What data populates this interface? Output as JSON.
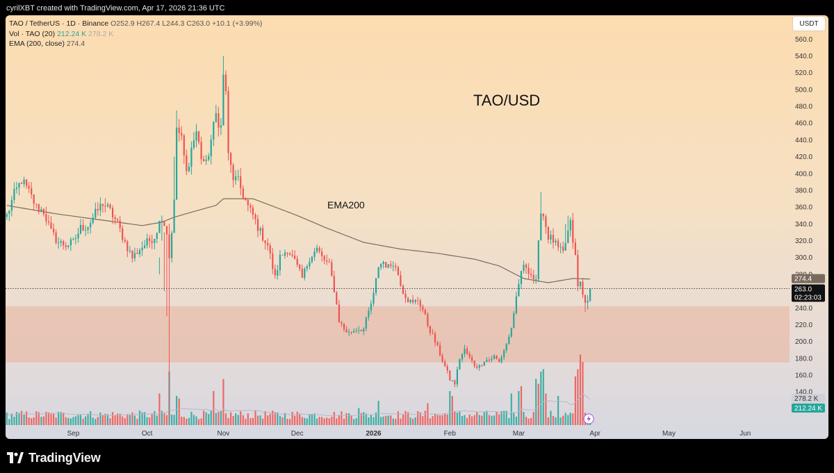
{
  "header": {
    "credit": "cyrilXBT created with TradingView.com, Apr 17, 2026 21:36 UTC",
    "currency": "USDT"
  },
  "legend": {
    "symbol_line": "TAO / TetherUS · 1D · Binance",
    "ohlc": "O252.9  H267.4  L244.3  C263.0  +10.1 (+3.99%)",
    "vol_label": "Vol · TAO (20)",
    "vol_value": "212.24 K",
    "vol_ma": "278.2 K",
    "ema_label": "EMA (200, close)",
    "ema_value": "274.4"
  },
  "annotations": {
    "title": "TAO/USD",
    "ema": "EMA200"
  },
  "footer": {
    "brand": "TradingView"
  },
  "colors": {
    "up": "#26a69a",
    "down": "#ef5350",
    "ema_line": "#7a6a5e",
    "zone": "#e7b29a",
    "bg_top": "#fcdcb0",
    "bg_bottom": "#d6d8e2"
  },
  "chart_data": {
    "type": "candlestick",
    "symbol": "TAO / TetherUS",
    "interval": "1D",
    "exchange": "Binance",
    "ylim": [
      120,
      575
    ],
    "yticks": [
      140,
      160,
      180,
      200,
      220,
      240,
      260,
      280,
      300,
      320,
      340,
      360,
      380,
      400,
      420,
      440,
      460,
      480,
      500,
      520,
      540,
      560
    ],
    "x_ticks": [
      {
        "label": "Sep",
        "idx": 27
      },
      {
        "label": "Oct",
        "idx": 57
      },
      {
        "label": "Nov",
        "idx": 88
      },
      {
        "label": "Dec",
        "idx": 118
      },
      {
        "label": "2026",
        "idx": 149
      },
      {
        "label": "Feb",
        "idx": 180
      },
      {
        "label": "Mar",
        "idx": 208
      },
      {
        "label": "Apr",
        "idx": 239
      },
      {
        "label": "May",
        "idx": 269
      },
      {
        "label": "Jun",
        "idx": 300
      }
    ],
    "x_range": [
      -0.5,
      318
    ],
    "last_close": 263.0,
    "ema_last": 274.4,
    "countdown": "02:23:03",
    "vol_ma_label": "278.2 K",
    "vol_last_label": "212.24 K",
    "demand_zone": {
      "low": 175,
      "high": 242
    },
    "close_anchors": [
      [
        0,
        350
      ],
      [
        3,
        375
      ],
      [
        6,
        392
      ],
      [
        9,
        378
      ],
      [
        12,
        360
      ],
      [
        15,
        355
      ],
      [
        18,
        330
      ],
      [
        21,
        318
      ],
      [
        24,
        315
      ],
      [
        27,
        318
      ],
      [
        30,
        335
      ],
      [
        33,
        338
      ],
      [
        36,
        352
      ],
      [
        39,
        365
      ],
      [
        42,
        355
      ],
      [
        45,
        340
      ],
      [
        48,
        318
      ],
      [
        51,
        300
      ],
      [
        54,
        310
      ],
      [
        57,
        318
      ],
      [
        60,
        325
      ],
      [
        63,
        350
      ],
      [
        65,
        330
      ],
      [
        66,
        300
      ],
      [
        68,
        365
      ],
      [
        69,
        455
      ],
      [
        71,
        440
      ],
      [
        73,
        400
      ],
      [
        75,
        430
      ],
      [
        77,
        450
      ],
      [
        79,
        420
      ],
      [
        81,
        410
      ],
      [
        83,
        440
      ],
      [
        85,
        470
      ],
      [
        87,
        455
      ],
      [
        88,
        515
      ],
      [
        89,
        500
      ],
      [
        90,
        420
      ],
      [
        92,
        395
      ],
      [
        94,
        390
      ],
      [
        96,
        375
      ],
      [
        98,
        360
      ],
      [
        100,
        350
      ],
      [
        103,
        330
      ],
      [
        106,
        315
      ],
      [
        109,
        275
      ],
      [
        111,
        300
      ],
      [
        114,
        310
      ],
      [
        117,
        295
      ],
      [
        120,
        275
      ],
      [
        123,
        300
      ],
      [
        126,
        310
      ],
      [
        128,
        300
      ],
      [
        131,
        290
      ],
      [
        133,
        262
      ],
      [
        135,
        225
      ],
      [
        137,
        215
      ],
      [
        139,
        210
      ],
      [
        142,
        215
      ],
      [
        145,
        215
      ],
      [
        147,
        235
      ],
      [
        149,
        255
      ],
      [
        151,
        290
      ],
      [
        153,
        295
      ],
      [
        155,
        288
      ],
      [
        157,
        295
      ],
      [
        159,
        280
      ],
      [
        161,
        260
      ],
      [
        163,
        250
      ],
      [
        165,
        245
      ],
      [
        167,
        250
      ],
      [
        169,
        238
      ],
      [
        171,
        220
      ],
      [
        174,
        200
      ],
      [
        176,
        185
      ],
      [
        178,
        170
      ],
      [
        180,
        155
      ],
      [
        182,
        150
      ],
      [
        184,
        180
      ],
      [
        186,
        190
      ],
      [
        188,
        180
      ],
      [
        190,
        172
      ],
      [
        192,
        170
      ],
      [
        194,
        178
      ],
      [
        196,
        178
      ],
      [
        198,
        182
      ],
      [
        200,
        175
      ],
      [
        202,
        190
      ],
      [
        204,
        205
      ],
      [
        206,
        230
      ],
      [
        207,
        250
      ],
      [
        209,
        285
      ],
      [
        211,
        290
      ],
      [
        213,
        280
      ],
      [
        215,
        270
      ],
      [
        216,
        315
      ],
      [
        217,
        358
      ],
      [
        218,
        350
      ],
      [
        220,
        325
      ],
      [
        222,
        320
      ],
      [
        224,
        310
      ],
      [
        226,
        305
      ],
      [
        228,
        330
      ],
      [
        229,
        340
      ],
      [
        230,
        320
      ],
      [
        231,
        300
      ],
      [
        232,
        265
      ],
      [
        233,
        270
      ],
      [
        234,
        255
      ],
      [
        235,
        250
      ],
      [
        236,
        245
      ],
      [
        237,
        263
      ]
    ],
    "ema_anchors": [
      [
        0,
        362
      ],
      [
        20,
        352
      ],
      [
        40,
        344
      ],
      [
        55,
        338
      ],
      [
        63,
        342
      ],
      [
        68,
        348
      ],
      [
        80,
        358
      ],
      [
        85,
        362
      ],
      [
        88,
        370
      ],
      [
        100,
        370
      ],
      [
        118,
        350
      ],
      [
        130,
        335
      ],
      [
        145,
        318
      ],
      [
        160,
        310
      ],
      [
        175,
        305
      ],
      [
        190,
        298
      ],
      [
        200,
        290
      ],
      [
        210,
        275
      ],
      [
        220,
        270
      ],
      [
        230,
        275
      ],
      [
        237,
        274.4
      ]
    ],
    "spikes": [
      {
        "idx": 62,
        "low": 280,
        "high": 300
      },
      {
        "idx": 63,
        "low": 320,
        "high": 350
      },
      {
        "idx": 64,
        "low": 260,
        "high": 330
      },
      {
        "idx": 65,
        "low": 230,
        "high": 330
      },
      {
        "idx": 66,
        "low": 45,
        "high": 340
      },
      {
        "idx": 68,
        "low": 350,
        "high": 420
      },
      {
        "idx": 69,
        "low": 420,
        "high": 475
      },
      {
        "idx": 88,
        "low": 460,
        "high": 540
      },
      {
        "idx": 217,
        "low": 330,
        "high": 378
      },
      {
        "idx": 227,
        "low": 310,
        "high": 340
      },
      {
        "idx": 228,
        "low": 320,
        "high": 350
      },
      {
        "idx": 229,
        "low": 325,
        "high": 348
      },
      {
        "idx": 235,
        "low": 235,
        "high": 250
      },
      {
        "idx": 236,
        "low": 238,
        "high": 255
      }
    ],
    "volume_spikes": [
      {
        "idx": 62,
        "v": 0.65,
        "dir": "down"
      },
      {
        "idx": 66,
        "v": 1.1,
        "dir": "up"
      },
      {
        "idx": 69,
        "v": 0.6,
        "dir": "up"
      },
      {
        "idx": 70,
        "v": 0.55,
        "dir": "down"
      },
      {
        "idx": 84,
        "v": 0.7,
        "dir": "down"
      },
      {
        "idx": 88,
        "v": 0.95,
        "dir": "down"
      },
      {
        "idx": 143,
        "v": 0.35,
        "dir": "up"
      },
      {
        "idx": 151,
        "v": 0.5,
        "dir": "up"
      },
      {
        "idx": 171,
        "v": 0.45,
        "dir": "down"
      },
      {
        "idx": 180,
        "v": 0.7,
        "dir": "up"
      },
      {
        "idx": 181,
        "v": 0.6,
        "dir": "down"
      },
      {
        "idx": 205,
        "v": 0.65,
        "dir": "up"
      },
      {
        "idx": 208,
        "v": 0.7,
        "dir": "up"
      },
      {
        "idx": 209,
        "v": 0.8,
        "dir": "down"
      },
      {
        "idx": 215,
        "v": 0.95,
        "dir": "up"
      },
      {
        "idx": 216,
        "v": 0.85,
        "dir": "down"
      },
      {
        "idx": 217,
        "v": 1.1,
        "dir": "up"
      },
      {
        "idx": 218,
        "v": 1.15,
        "dir": "up"
      },
      {
        "idx": 219,
        "v": 0.65,
        "dir": "down"
      },
      {
        "idx": 224,
        "v": 0.6,
        "dir": "up"
      },
      {
        "idx": 231,
        "v": 1.0,
        "dir": "down"
      },
      {
        "idx": 232,
        "v": 1.15,
        "dir": "down"
      },
      {
        "idx": 233,
        "v": 1.45,
        "dir": "down"
      },
      {
        "idx": 234,
        "v": 1.3,
        "dir": "down"
      }
    ]
  }
}
